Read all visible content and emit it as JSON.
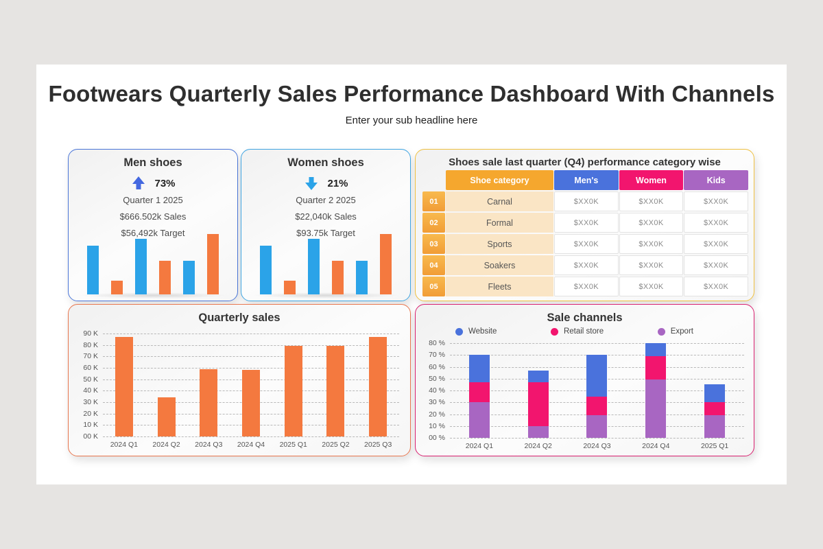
{
  "page": {
    "background": "#E6E4E2",
    "canvas_background": "#FFFFFF"
  },
  "header": {
    "title": "Footwears Quarterly Sales Performance Dashboard With Channels",
    "subtitle": "Enter your sub headline here"
  },
  "cards": {
    "men": {
      "title": "Men shoes",
      "icon": "arrow-up-icon",
      "pct": "73%",
      "quarter": "Quarter 1 2025",
      "sales": "$666.502k Sales",
      "target": "$56,492k Target",
      "arrow_color": "#4468E0",
      "border_color": "#4B76D8"
    },
    "women": {
      "title": "Women shoes",
      "icon": "arrow-down-icon",
      "pct": "21%",
      "quarter": "Quarter 2 2025",
      "sales": "$22,040k Sales",
      "target": "$93.75k Target",
      "arrow_color": "#2BA3E8",
      "border_color": "#3FA5E2"
    }
  },
  "table": {
    "title": "Shoes sale last quarter (Q4) performance category wise",
    "border_color": "#EFC040",
    "headers": [
      {
        "label": "Shoe category",
        "color": "#F5A72E"
      },
      {
        "label": "Men's",
        "color": "#4A72DC"
      },
      {
        "label": "Women",
        "color": "#F2156E"
      },
      {
        "label": "Kids",
        "color": "#A866C2"
      }
    ],
    "rows": [
      {
        "num": "01",
        "category": "Carnal",
        "values": [
          "$XX0K",
          "$XX0K",
          "$XX0K"
        ]
      },
      {
        "num": "02",
        "category": "Formal",
        "values": [
          "$XX0K",
          "$XX0K",
          "$XX0K"
        ]
      },
      {
        "num": "03",
        "category": "Sports",
        "values": [
          "$XX0K",
          "$XX0K",
          "$XX0K"
        ]
      },
      {
        "num": "04",
        "category": "Soakers",
        "values": [
          "$XX0K",
          "$XX0K",
          "$XX0K"
        ]
      },
      {
        "num": "05",
        "category": "Fleets",
        "values": [
          "$XX0K",
          "$XX0K",
          "$XX0K"
        ]
      }
    ]
  },
  "chart_data": [
    {
      "id": "men_mini",
      "type": "bar",
      "title": "Men shoes mini trend",
      "categories": [
        "1",
        "2",
        "3",
        "4",
        "5",
        "6"
      ],
      "values": [
        81,
        23,
        92,
        56,
        56,
        100
      ],
      "bar_colors": [
        "#2BA3E8",
        "#F4793F",
        "#2BA3E8",
        "#F4793F",
        "#2BA3E8",
        "#F4793F"
      ],
      "ylim": [
        0,
        100
      ],
      "grid": false
    },
    {
      "id": "women_mini",
      "type": "bar",
      "title": "Women shoes mini trend",
      "categories": [
        "1",
        "2",
        "3",
        "4",
        "5",
        "6"
      ],
      "values": [
        81,
        23,
        92,
        56,
        56,
        100
      ],
      "bar_colors": [
        "#2BA3E8",
        "#F4793F",
        "#2BA3E8",
        "#F4793F",
        "#2BA3E8",
        "#F4793F"
      ],
      "ylim": [
        0,
        100
      ],
      "grid": false
    },
    {
      "id": "quarterly",
      "type": "bar",
      "title": "Quarterly sales",
      "categories": [
        "2024 Q1",
        "2024 Q2",
        "2024 Q3",
        "2024 Q4",
        "2025 Q1",
        "2025 Q2",
        "2025 Q3"
      ],
      "values": [
        87,
        34,
        59,
        58,
        79,
        79,
        87
      ],
      "bar_color": "#F4793F",
      "xlabel": "",
      "ylabel": "K",
      "ylim": [
        0,
        90
      ],
      "yticks": [
        "90 K",
        "80 K",
        "70 K",
        "60 K",
        "50 K",
        "40 K",
        "30 K",
        "20 K",
        "10 K",
        "00 K"
      ],
      "grid": true,
      "border_color": "#E8764E"
    },
    {
      "id": "sale_channels",
      "type": "stacked-bar",
      "title": "Sale channels",
      "categories": [
        "2024 Q1",
        "2024 Q2",
        "2024 Q3",
        "2024 Q4",
        "2025 Q1"
      ],
      "series": [
        {
          "name": "Website",
          "color": "#4A72DC",
          "values": [
            23,
            10,
            35,
            11,
            15
          ]
        },
        {
          "name": "Retail store",
          "color": "#F2156E",
          "values": [
            17,
            37,
            16,
            20,
            11
          ]
        },
        {
          "name": "Export",
          "color": "#A866C2",
          "values": [
            30,
            10,
            19,
            50,
            19
          ]
        }
      ],
      "stack_order_bottom_to_top": [
        "Export",
        "Retail store",
        "Website"
      ],
      "xlabel": "",
      "ylabel": "%",
      "ylim": [
        0,
        80
      ],
      "yticks": [
        "80 %",
        "70 %",
        "60 %",
        "50 %",
        "40 %",
        "30 %",
        "20 %",
        "10 %",
        "00 %"
      ],
      "grid": true,
      "legend_position": "top",
      "border_color": "#D92070"
    }
  ]
}
